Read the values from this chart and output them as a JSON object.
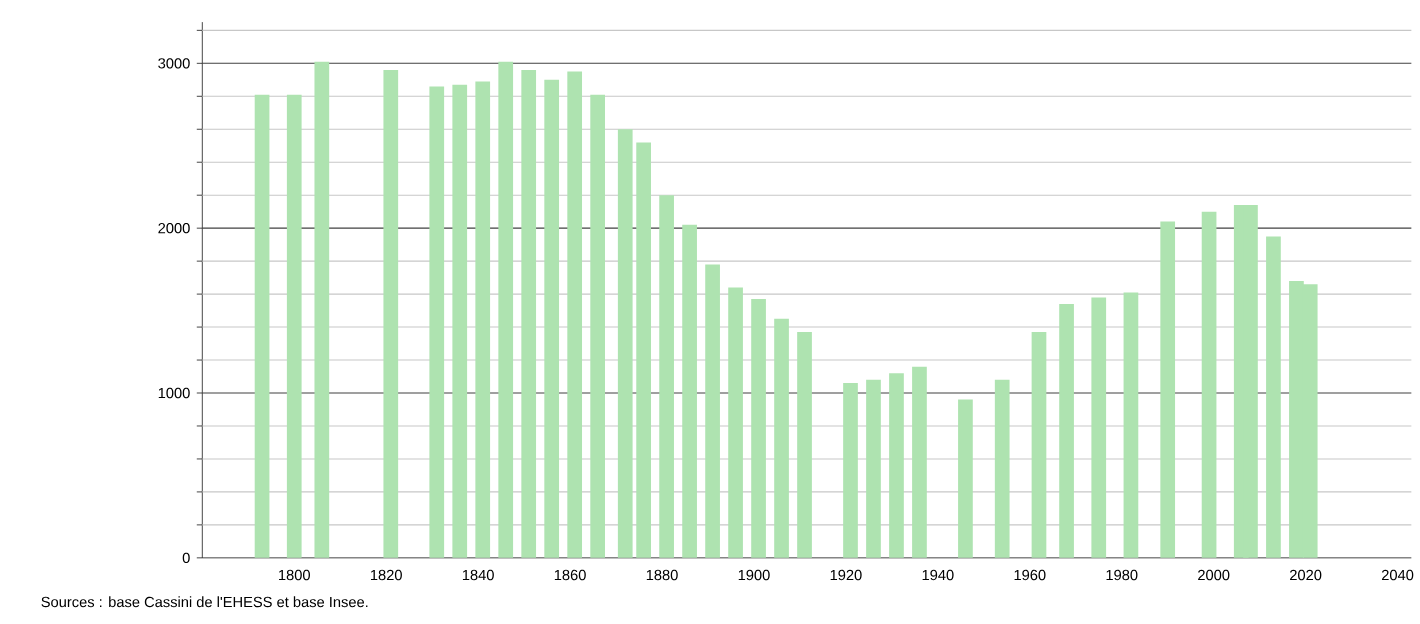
{
  "chart_data": {
    "type": "bar",
    "color": "#aee3b0",
    "x": [
      1793,
      1800,
      1806,
      1821,
      1831,
      1836,
      1841,
      1846,
      1851,
      1856,
      1861,
      1866,
      1872,
      1876,
      1881,
      1886,
      1891,
      1896,
      1901,
      1906,
      1911,
      1921,
      1926,
      1931,
      1936,
      1946,
      1954,
      1962,
      1968,
      1975,
      1982,
      1990,
      1999,
      2006,
      2008,
      2013,
      2018,
      2021
    ],
    "values": [
      2810,
      2810,
      3010,
      2960,
      2860,
      2870,
      2890,
      3010,
      2960,
      2900,
      2950,
      2810,
      2600,
      2520,
      2200,
      2020,
      1780,
      1640,
      1570,
      1450,
      1370,
      1060,
      1080,
      1120,
      1160,
      960,
      1080,
      1370,
      1540,
      1580,
      1610,
      2040,
      2100,
      2140,
      2140,
      1950,
      1680,
      1660
    ],
    "xlim": [
      1780,
      2043
    ],
    "ylim": [
      0,
      3250
    ],
    "xticks": [
      1800,
      1820,
      1840,
      1860,
      1880,
      1900,
      1920,
      1940,
      1960,
      1980,
      2000,
      2020,
      2040
    ],
    "yticks": [
      0,
      {
        "value": 200,
        "label": null
      },
      {
        "value": 400,
        "label": null
      },
      {
        "value": 600,
        "label": null
      },
      {
        "value": 800,
        "label": null
      },
      1000,
      {
        "value": 1200,
        "label": null
      },
      {
        "value": 1400,
        "label": null
      },
      {
        "value": 1600,
        "label": null
      },
      {
        "value": 1800,
        "label": null
      },
      2000,
      {
        "value": 2200,
        "label": null
      },
      {
        "value": 2400,
        "label": null
      },
      {
        "value": 2600,
        "label": null
      },
      {
        "value": 2800,
        "label": null
      },
      3000,
      {
        "value": 3200,
        "label": null
      }
    ],
    "grid": "y",
    "annotations": [
      "Sources : base Cassini de l'EHESS et base Insee."
    ]
  }
}
